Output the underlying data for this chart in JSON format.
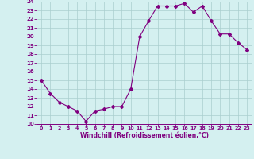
{
  "x": [
    0,
    1,
    2,
    3,
    4,
    5,
    6,
    7,
    8,
    9,
    10,
    11,
    12,
    13,
    14,
    15,
    16,
    17,
    18,
    19,
    20,
    21,
    22,
    23
  ],
  "y": [
    15,
    13.5,
    12.5,
    12,
    11.5,
    10.3,
    11.5,
    11.7,
    12,
    12,
    14,
    20,
    21.8,
    23.5,
    23.5,
    23.5,
    23.8,
    22.8,
    23.5,
    21.8,
    20.3,
    20.3,
    19.3,
    18.5
  ],
  "line_color": "#800080",
  "marker": "D",
  "marker_size": 2.0,
  "bg_color": "#d4f0f0",
  "grid_color": "#aacece",
  "xlabel": "Windchill (Refroidissement éolien,°C)",
  "xlim": [
    -0.5,
    23.5
  ],
  "ylim": [
    10,
    24
  ],
  "yticks": [
    10,
    11,
    12,
    13,
    14,
    15,
    16,
    17,
    18,
    19,
    20,
    21,
    22,
    23,
    24
  ],
  "xticks": [
    0,
    1,
    2,
    3,
    4,
    5,
    6,
    7,
    8,
    9,
    10,
    11,
    12,
    13,
    14,
    15,
    16,
    17,
    18,
    19,
    20,
    21,
    22,
    23
  ],
  "tick_color": "#800080",
  "label_color": "#800080",
  "spine_color": "#800080"
}
